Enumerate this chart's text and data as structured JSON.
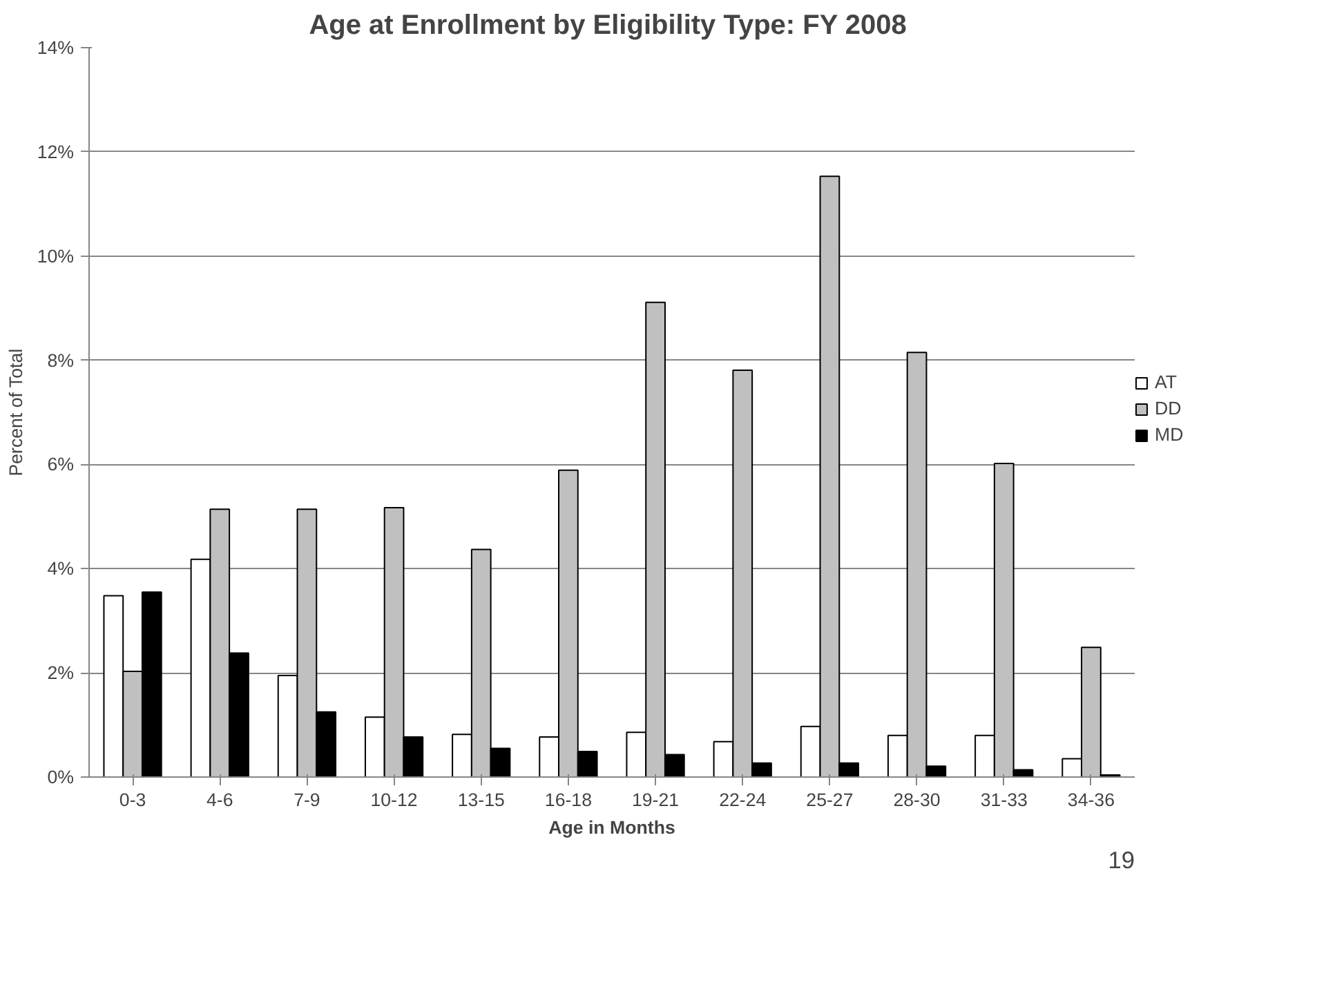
{
  "chart_data": {
    "type": "bar",
    "title": "Age at Enrollment by Eligibility Type:  FY 2008",
    "xlabel": "Age in Months",
    "ylabel": "Percent of Total",
    "categories": [
      "0-3",
      "4-6",
      "7-9",
      "10-12",
      "13-15",
      "16-18",
      "19-21",
      "22-24",
      "25-27",
      "28-30",
      "31-33",
      "34-36"
    ],
    "series": [
      {
        "name": "AT",
        "color": "#ffffff",
        "values": [
          3.48,
          4.18,
          1.95,
          1.15,
          0.82,
          0.77,
          0.86,
          0.68,
          0.97,
          0.8,
          0.8,
          0.35
        ]
      },
      {
        "name": "DD",
        "color": "#c0c0c0",
        "values": [
          2.03,
          5.14,
          5.14,
          5.17,
          4.37,
          5.89,
          9.11,
          7.81,
          11.53,
          8.15,
          6.02,
          2.49
        ]
      },
      {
        "name": "MD",
        "color": "#000000",
        "values": [
          3.55,
          2.38,
          1.25,
          0.77,
          0.55,
          0.49,
          0.43,
          0.27,
          0.27,
          0.21,
          0.14,
          0.04
        ]
      }
    ],
    "ylim": [
      0,
      14
    ],
    "yticks": [
      {
        "value": 0,
        "label": "0%"
      },
      {
        "value": 2,
        "label": "2%"
      },
      {
        "value": 4,
        "label": "4%"
      },
      {
        "value": 6,
        "label": "6%"
      },
      {
        "value": 8,
        "label": "8%"
      },
      {
        "value": 10,
        "label": "10%"
      },
      {
        "value": 12,
        "label": "12%"
      },
      {
        "value": 14,
        "label": "14%"
      }
    ],
    "grid": "y",
    "legend": "right",
    "annotations": [
      "19"
    ]
  }
}
